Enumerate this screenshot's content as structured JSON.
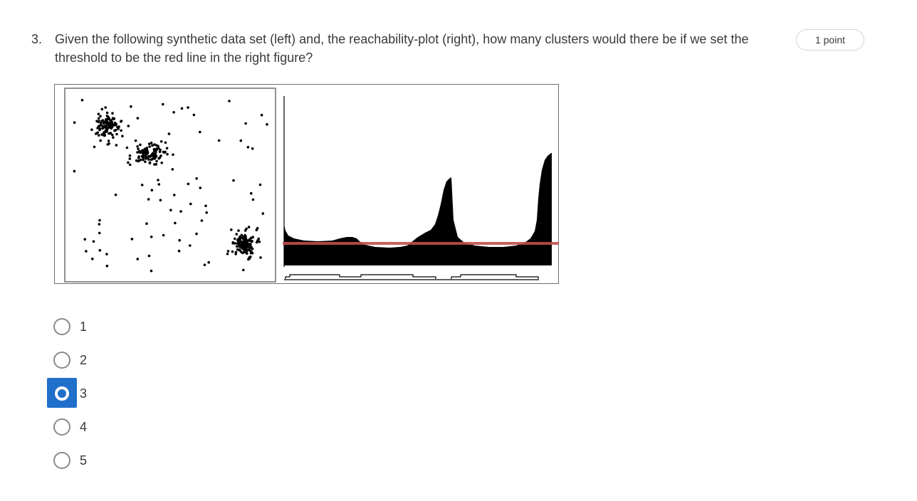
{
  "question": {
    "number": "3.",
    "text": "Given the following synthetic data set (left) and, the reachability-plot (right), how many clusters would there be if we set the threshold to be the red line in the right figure?",
    "points": "1 point"
  },
  "figure": {
    "threshold_color": "#c0504d",
    "plot_color": "#000000"
  },
  "options": [
    {
      "label": "1",
      "selected": false
    },
    {
      "label": "2",
      "selected": false
    },
    {
      "label": "3",
      "selected": true
    },
    {
      "label": "4",
      "selected": false
    },
    {
      "label": "5",
      "selected": false
    }
  ]
}
